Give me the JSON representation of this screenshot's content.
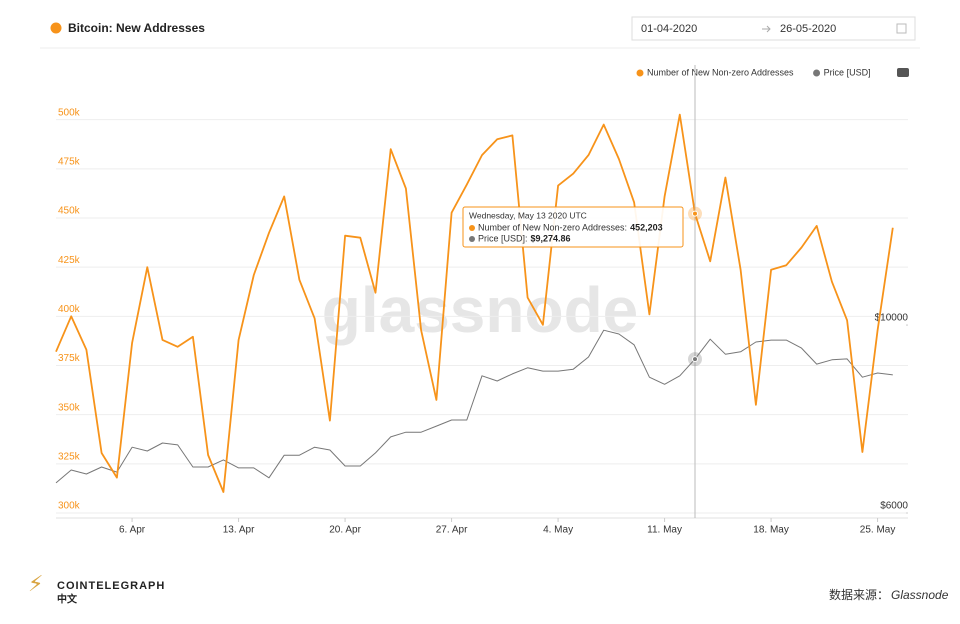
{
  "chart_data": {
    "type": "line",
    "title": "Bitcoin: New Addresses",
    "date_range": {
      "from": "01-04-2020",
      "to": "26-05-2020"
    },
    "watermark": "glassnode",
    "x": [
      "2020-04-01",
      "2020-04-02",
      "2020-04-03",
      "2020-04-04",
      "2020-04-05",
      "2020-04-06",
      "2020-04-07",
      "2020-04-08",
      "2020-04-09",
      "2020-04-10",
      "2020-04-11",
      "2020-04-12",
      "2020-04-13",
      "2020-04-14",
      "2020-04-15",
      "2020-04-16",
      "2020-04-17",
      "2020-04-18",
      "2020-04-19",
      "2020-04-20",
      "2020-04-21",
      "2020-04-22",
      "2020-04-23",
      "2020-04-24",
      "2020-04-25",
      "2020-04-26",
      "2020-04-27",
      "2020-04-28",
      "2020-04-29",
      "2020-04-30",
      "2020-05-01",
      "2020-05-02",
      "2020-05-03",
      "2020-05-04",
      "2020-05-05",
      "2020-05-06",
      "2020-05-07",
      "2020-05-08",
      "2020-05-09",
      "2020-05-10",
      "2020-05-11",
      "2020-05-12",
      "2020-05-13",
      "2020-05-14",
      "2020-05-15",
      "2020-05-16",
      "2020-05-17",
      "2020-05-18",
      "2020-05-19",
      "2020-05-20",
      "2020-05-21",
      "2020-05-22",
      "2020-05-23",
      "2020-05-24",
      "2020-05-25",
      "2020-05-26"
    ],
    "xlim": [
      "2020-04-01",
      "2020-05-27"
    ],
    "xticks": [
      {
        "value": "2020-04-06",
        "label": "6. Apr"
      },
      {
        "value": "2020-04-13",
        "label": "13. Apr"
      },
      {
        "value": "2020-04-20",
        "label": "20. Apr"
      },
      {
        "value": "2020-04-27",
        "label": "27. Apr"
      },
      {
        "value": "2020-05-04",
        "label": "4. May"
      },
      {
        "value": "2020-05-11",
        "label": "11. May"
      },
      {
        "value": "2020-05-18",
        "label": "18. May"
      },
      {
        "value": "2020-05-25",
        "label": "25. May"
      }
    ],
    "ylim": [
      300000,
      510000
    ],
    "yticks": [
      {
        "value": 300000,
        "label": "300k"
      },
      {
        "value": 325000,
        "label": "325k"
      },
      {
        "value": 350000,
        "label": "350k"
      },
      {
        "value": 375000,
        "label": "375k"
      },
      {
        "value": 400000,
        "label": "400k"
      },
      {
        "value": 425000,
        "label": "425k"
      },
      {
        "value": 450000,
        "label": "450k"
      },
      {
        "value": 475000,
        "label": "475k"
      },
      {
        "value": 500000,
        "label": "500k"
      }
    ],
    "y2lim": [
      6000,
      14790
    ],
    "y2ticks": [
      {
        "value": 6000,
        "label": "$6000"
      },
      {
        "value": 10000,
        "label": "$10000"
      }
    ],
    "grid": true,
    "legend": "top-right",
    "series": [
      {
        "name": "Number of New Non-zero Addresses",
        "color": "#f7931a",
        "values": [
          382000,
          400000,
          383000,
          330500,
          318000,
          386500,
          425000,
          388000,
          384500,
          389600,
          329500,
          310700,
          388000,
          421000,
          442500,
          461000,
          418600,
          399000,
          347000,
          441000,
          440000,
          412000,
          485000,
          465000,
          393000,
          357500,
          452700,
          467000,
          482000,
          490000,
          492000,
          409500,
          395700,
          466500,
          472600,
          482000,
          497500,
          480000,
          458000,
          401000,
          461000,
          502600,
          452203,
          428000,
          470600,
          423700,
          355000,
          423700,
          426000,
          435000,
          446000,
          417600,
          398000,
          331000,
          393000,
          445000
        ]
      },
      {
        "name": "Price [USD]",
        "color": "#777777",
        "axis": "y2",
        "values": [
          6640,
          6915,
          6830,
          6980,
          6870,
          7400,
          7320,
          7490,
          7450,
          6980,
          6980,
          7130,
          6960,
          6960,
          6750,
          7230,
          7230,
          7400,
          7340,
          7000,
          7000,
          7280,
          7620,
          7720,
          7720,
          7850,
          7980,
          7980,
          8920,
          8810,
          8960,
          9090,
          9020,
          9020,
          9060,
          9320,
          9890,
          9810,
          9580,
          8890,
          8740,
          8920,
          9274.86,
          9700,
          9380,
          9430,
          9640,
          9680,
          9680,
          9510,
          9170,
          9260,
          9280,
          8890,
          8980,
          8940
        ]
      }
    ],
    "tooltip": {
      "title": "Wednesday, May 13 2020 UTC",
      "x": "2020-05-13",
      "lines": [
        {
          "label": "Number of New Non-zero Addresses:",
          "value": "452,203"
        },
        {
          "label": "Price [USD]:",
          "value": "$9,274.86"
        }
      ]
    }
  },
  "footer": {
    "brand": "COINTELEGRAPH",
    "brand_sub": "中文",
    "source_label": "数据来源：",
    "source": "Glassnode"
  }
}
